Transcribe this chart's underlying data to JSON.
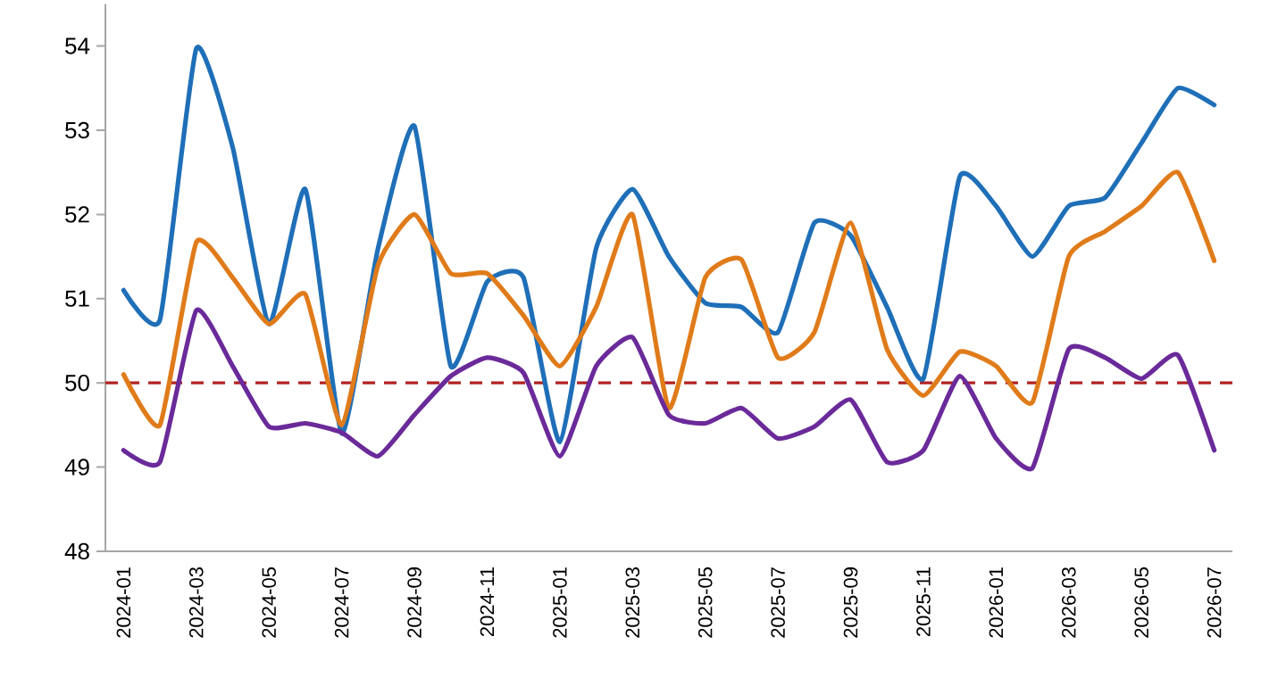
{
  "chart_data": {
    "type": "line",
    "categories": [
      "2024-01",
      null,
      "2024-03",
      null,
      "2024-05",
      null,
      "2024-07",
      null,
      "2024-09",
      null,
      "2024-11",
      null,
      "2025-01",
      null,
      "2025-03",
      null,
      "2025-05",
      null,
      "2025-07",
      null,
      "2025-09",
      null,
      "2025-11",
      null,
      "2026-01",
      null,
      "2026-03",
      null,
      "2026-05",
      null,
      "2026-07"
    ],
    "series": [
      {
        "color": "#1f6fb8",
        "values": [
          51.1,
          50.75,
          53.97,
          52.8,
          50.7,
          52.3,
          49.4,
          51.6,
          53.05,
          50.2,
          51.2,
          51.25,
          49.3,
          51.6,
          52.3,
          51.5,
          50.95,
          50.9,
          50.6,
          51.9,
          51.75,
          50.9,
          50.05,
          52.45,
          52.1,
          51.5,
          52.1,
          52.2,
          52.85,
          53.5,
          53.3
        ]
      },
      {
        "color": "#e07b1a",
        "values": [
          50.1,
          49.5,
          51.67,
          51.25,
          50.7,
          51.05,
          49.5,
          51.4,
          52.0,
          51.3,
          51.3,
          50.8,
          50.2,
          50.9,
          52.0,
          49.7,
          51.25,
          51.46,
          50.3,
          50.6,
          51.9,
          50.4,
          49.85,
          50.37,
          50.2,
          49.77,
          51.5,
          51.8,
          52.1,
          52.5,
          51.45
        ]
      },
      {
        "color": "#6a2a9a",
        "values": [
          49.2,
          49.06,
          50.86,
          50.2,
          49.48,
          49.52,
          49.41,
          49.13,
          49.62,
          50.08,
          50.3,
          50.12,
          49.13,
          50.2,
          50.54,
          49.62,
          49.52,
          49.7,
          49.34,
          49.48,
          49.8,
          49.06,
          49.2,
          50.08,
          49.34,
          48.99,
          50.4,
          50.3,
          50.05,
          50.33,
          49.2
        ]
      }
    ],
    "ref_lines": [
      {
        "axis": "y",
        "value": 50,
        "color": "#b22222",
        "line_style": "dashed"
      }
    ],
    "ylim": [
      48,
      54.5
    ],
    "yticks": [
      48,
      49,
      50,
      51,
      52,
      53,
      54
    ],
    "grid": false,
    "marker": "none"
  }
}
